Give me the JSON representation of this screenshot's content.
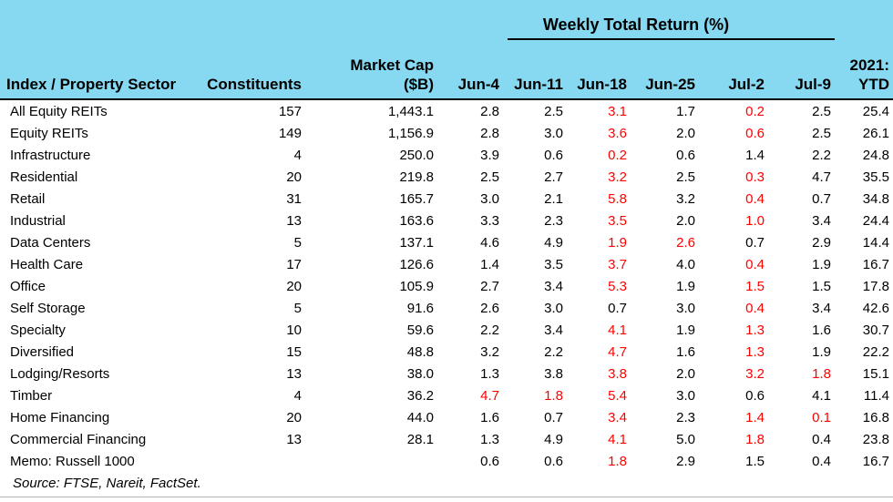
{
  "colors": {
    "header_bg": "#87d9f2",
    "negative": "#ff0000",
    "header_rule": "#000000",
    "bottom_rule": "#b5b5b5"
  },
  "header": {
    "sector": "Index / Property Sector",
    "constituents": "Constituents",
    "market_cap_l1": "Market Cap",
    "market_cap_l2": "($B)",
    "weekly_title": "Weekly Total Return (%)",
    "weeks": [
      "Jun-4",
      "Jun-11",
      "Jun-18",
      "Jun-25",
      "Jul-2",
      "Jul-9"
    ],
    "ytd_l1": "2021:",
    "ytd_l2": "YTD"
  },
  "chart_data": {
    "type": "table",
    "title": "Weekly Total Return (%)",
    "columns": [
      "Index / Property Sector",
      "Constituents",
      "Market Cap ($B)",
      "Jun-4",
      "Jun-11",
      "Jun-18",
      "Jun-25",
      "Jul-2",
      "Jul-9",
      "2021: YTD"
    ],
    "rows": [
      {
        "sector": "All Equity REITs",
        "constituents": "157",
        "market_cap": "1,443.1",
        "weekly": [
          "2.8",
          "2.5",
          "3.1",
          "1.7",
          "0.2",
          "2.5"
        ],
        "red": [
          false,
          false,
          true,
          false,
          true,
          false
        ],
        "ytd": "25.4"
      },
      {
        "sector": "Equity REITs",
        "constituents": "149",
        "market_cap": "1,156.9",
        "weekly": [
          "2.8",
          "3.0",
          "3.6",
          "2.0",
          "0.6",
          "2.5"
        ],
        "red": [
          false,
          false,
          true,
          false,
          true,
          false
        ],
        "ytd": "26.1"
      },
      {
        "sector": "Infrastructure",
        "constituents": "4",
        "market_cap": "250.0",
        "weekly": [
          "3.9",
          "0.6",
          "0.2",
          "0.6",
          "1.4",
          "2.2"
        ],
        "red": [
          false,
          false,
          true,
          false,
          false,
          false
        ],
        "ytd": "24.8"
      },
      {
        "sector": "Residential",
        "constituents": "20",
        "market_cap": "219.8",
        "weekly": [
          "2.5",
          "2.7",
          "3.2",
          "2.5",
          "0.3",
          "4.7"
        ],
        "red": [
          false,
          false,
          true,
          false,
          true,
          false
        ],
        "ytd": "35.5"
      },
      {
        "sector": "Retail",
        "constituents": "31",
        "market_cap": "165.7",
        "weekly": [
          "3.0",
          "2.1",
          "5.8",
          "3.2",
          "0.4",
          "0.7"
        ],
        "red": [
          false,
          false,
          true,
          false,
          true,
          false
        ],
        "ytd": "34.8"
      },
      {
        "sector": "Industrial",
        "constituents": "13",
        "market_cap": "163.6",
        "weekly": [
          "3.3",
          "2.3",
          "3.5",
          "2.0",
          "1.0",
          "3.4"
        ],
        "red": [
          false,
          false,
          true,
          false,
          true,
          false
        ],
        "ytd": "24.4"
      },
      {
        "sector": "Data Centers",
        "constituents": "5",
        "market_cap": "137.1",
        "weekly": [
          "4.6",
          "4.9",
          "1.9",
          "2.6",
          "0.7",
          "2.9"
        ],
        "red": [
          false,
          false,
          true,
          true,
          false,
          false
        ],
        "ytd": "14.4"
      },
      {
        "sector": "Health Care",
        "constituents": "17",
        "market_cap": "126.6",
        "weekly": [
          "1.4",
          "3.5",
          "3.7",
          "4.0",
          "0.4",
          "1.9"
        ],
        "red": [
          false,
          false,
          true,
          false,
          true,
          false
        ],
        "ytd": "16.7"
      },
      {
        "sector": "Office",
        "constituents": "20",
        "market_cap": "105.9",
        "weekly": [
          "2.7",
          "3.4",
          "5.3",
          "1.9",
          "1.5",
          "1.5"
        ],
        "red": [
          false,
          false,
          true,
          false,
          true,
          false
        ],
        "ytd": "17.8"
      },
      {
        "sector": "Self Storage",
        "constituents": "5",
        "market_cap": "91.6",
        "weekly": [
          "2.6",
          "3.0",
          "0.7",
          "3.0",
          "0.4",
          "3.4"
        ],
        "red": [
          false,
          false,
          false,
          false,
          true,
          false
        ],
        "ytd": "42.6"
      },
      {
        "sector": "Specialty",
        "constituents": "10",
        "market_cap": "59.6",
        "weekly": [
          "2.2",
          "3.4",
          "4.1",
          "1.9",
          "1.3",
          "1.6"
        ],
        "red": [
          false,
          false,
          true,
          false,
          true,
          false
        ],
        "ytd": "30.7"
      },
      {
        "sector": "Diversified",
        "constituents": "15",
        "market_cap": "48.8",
        "weekly": [
          "3.2",
          "2.2",
          "4.7",
          "1.6",
          "1.3",
          "1.9"
        ],
        "red": [
          false,
          false,
          true,
          false,
          true,
          false
        ],
        "ytd": "22.2"
      },
      {
        "sector": "Lodging/Resorts",
        "constituents": "13",
        "market_cap": "38.0",
        "weekly": [
          "1.3",
          "3.8",
          "3.8",
          "2.0",
          "3.2",
          "1.8"
        ],
        "red": [
          false,
          false,
          true,
          false,
          true,
          true
        ],
        "ytd": "15.1"
      },
      {
        "sector": "Timber",
        "constituents": "4",
        "market_cap": "36.2",
        "weekly": [
          "4.7",
          "1.8",
          "5.4",
          "3.0",
          "0.6",
          "4.1"
        ],
        "red": [
          true,
          true,
          true,
          false,
          false,
          false
        ],
        "ytd": "11.4"
      },
      {
        "sector": "Home Financing",
        "constituents": "20",
        "market_cap": "44.0",
        "weekly": [
          "1.6",
          "0.7",
          "3.4",
          "2.3",
          "1.4",
          "0.1"
        ],
        "red": [
          false,
          false,
          true,
          false,
          true,
          true
        ],
        "ytd": "16.8"
      },
      {
        "sector": "Commercial Financing",
        "constituents": "13",
        "market_cap": "28.1",
        "weekly": [
          "1.3",
          "4.9",
          "4.1",
          "5.0",
          "1.8",
          "0.4"
        ],
        "red": [
          false,
          false,
          true,
          false,
          true,
          false
        ],
        "ytd": "23.8"
      },
      {
        "sector": "Memo: Russell 1000",
        "constituents": "",
        "market_cap": "",
        "weekly": [
          "0.6",
          "0.6",
          "1.8",
          "2.9",
          "1.5",
          "0.4"
        ],
        "red": [
          false,
          false,
          true,
          false,
          false,
          false
        ],
        "ytd": "16.7"
      }
    ],
    "source": "Source: FTSE, Nareit, FactSet.",
    "layout": {
      "red_cells_indicate": "red-colored return values",
      "grid": "off",
      "header_background": "#87d9f2"
    }
  }
}
